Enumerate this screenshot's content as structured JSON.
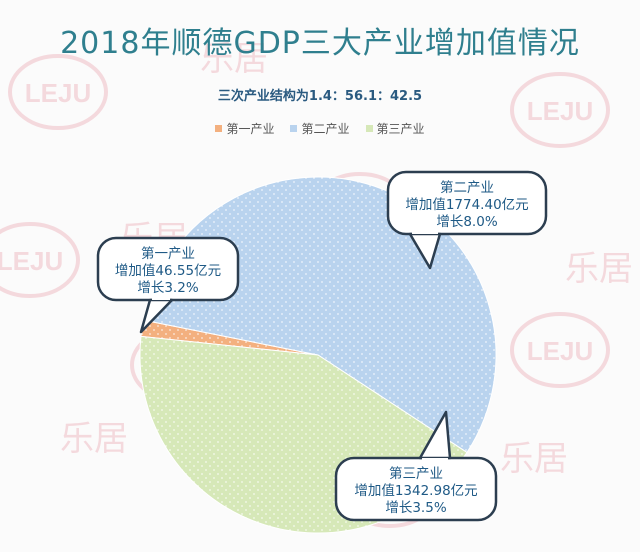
{
  "title": "2018年顺德GDP三大产业增加值情况",
  "subtitle": "三次产业结构为1.4：56.1：42.5",
  "watermark": {
    "logo_text": "LEJU",
    "brand_text": "乐居"
  },
  "colors": {
    "primary": "#f3b07f",
    "secondary": "#b9d3ee",
    "tertiary": "#d6e8b8",
    "title": "#2f7f8e",
    "outline": "#2c3e50"
  },
  "chart_data": {
    "type": "pie",
    "title": "2018年顺德GDP三大产业增加值情况",
    "subtitle": "三次产业结构为1.4：56.1：42.5",
    "legend_position": "top",
    "slices": [
      {
        "name": "第一产业",
        "value": 46.55,
        "share": 1.4,
        "growth": "3.2%",
        "color": "#f3b07f",
        "label_lines": [
          "第一产业",
          "增加值46.55亿元",
          "增长3.2%"
        ]
      },
      {
        "name": "第二产业",
        "value": 1774.4,
        "share": 56.1,
        "growth": "8.0%",
        "color": "#b9d3ee",
        "label_lines": [
          "第二产业",
          "增加值1774.40亿元",
          "增长8.0%"
        ]
      },
      {
        "name": "第三产业",
        "value": 1342.98,
        "share": 42.5,
        "growth": "3.5%",
        "color": "#d6e8b8",
        "label_lines": [
          "第三产业",
          "增加值1342.98亿元",
          "增长3.5%"
        ]
      }
    ]
  }
}
